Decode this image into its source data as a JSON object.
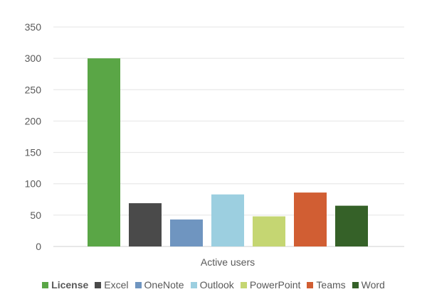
{
  "chart_data": {
    "type": "bar",
    "categories": [
      "Active users"
    ],
    "xlabel": "",
    "ylabel": "",
    "title": "",
    "ylim": [
      0,
      350
    ],
    "yticks": [
      0,
      50,
      100,
      150,
      200,
      250,
      300,
      350
    ],
    "grid": true,
    "legend_position": "bottom",
    "series": [
      {
        "name": "License",
        "values": [
          300
        ],
        "color": "#5aa646",
        "bold": true
      },
      {
        "name": "Excel",
        "values": [
          69
        ],
        "color": "#4a4a4a"
      },
      {
        "name": "OneNote",
        "values": [
          43
        ],
        "color": "#6f95c0"
      },
      {
        "name": "Outlook",
        "values": [
          83
        ],
        "color": "#9ccfe0"
      },
      {
        "name": "PowerPoint",
        "values": [
          48
        ],
        "color": "#c5d672"
      },
      {
        "name": "Teams",
        "values": [
          86
        ],
        "color": "#d15e33"
      },
      {
        "name": "Word",
        "values": [
          65
        ],
        "color": "#356128"
      }
    ]
  }
}
